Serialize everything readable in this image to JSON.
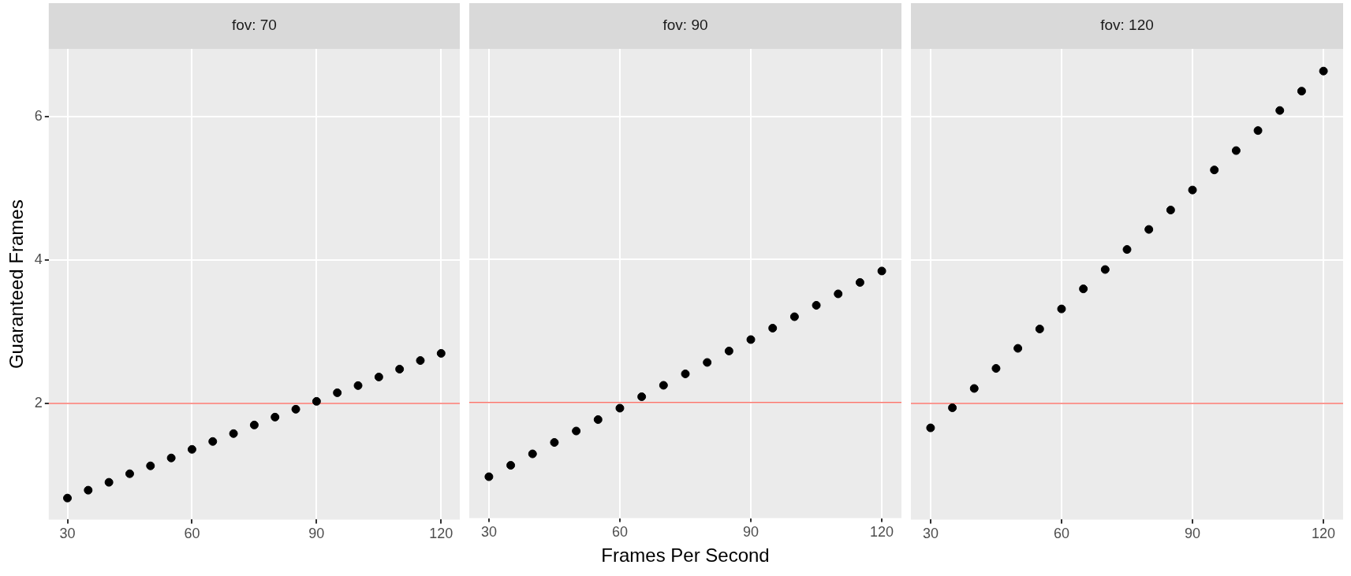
{
  "chart_data": [
    {
      "type": "scatter",
      "title": "fov: 70",
      "ylabel": "Guaranteed Frames",
      "x": [
        30,
        35,
        40,
        45,
        50,
        55,
        60,
        65,
        70,
        75,
        80,
        85,
        90,
        95,
        100,
        105,
        110,
        115,
        120
      ],
      "series": [
        {
          "color": "#000000",
          "values": [
            0.68,
            0.79,
            0.9,
            1.02,
            1.13,
            1.24,
            1.36,
            1.47,
            1.58,
            1.7,
            1.81,
            1.92,
            2.03,
            2.15,
            2.25,
            2.37,
            2.48,
            2.6,
            2.7
          ]
        }
      ],
      "xlim": [
        25.5,
        124.5
      ],
      "xticks": [
        30,
        60,
        90,
        120
      ],
      "ylim": [
        0.38,
        6.95
      ],
      "yticks": [
        2,
        4,
        6
      ],
      "ref_lines": [
        {
          "axis": "y",
          "value": 2,
          "color": "#f8766d"
        }
      ],
      "grid": true,
      "legend": false,
      "marker": "circle"
    },
    {
      "type": "scatter",
      "title": "fov: 90",
      "xlabel": "Frames Per Second",
      "x": [
        30,
        35,
        40,
        45,
        50,
        55,
        60,
        65,
        70,
        75,
        80,
        85,
        90,
        95,
        100,
        105,
        110,
        115,
        120
      ],
      "series": [
        {
          "color": "#000000",
          "values": [
            0.96,
            1.12,
            1.28,
            1.44,
            1.6,
            1.76,
            1.92,
            2.08,
            2.24,
            2.4,
            2.56,
            2.72,
            2.88,
            3.04,
            3.2,
            3.36,
            3.52,
            3.68,
            3.84
          ]
        }
      ],
      "xlim": [
        25.5,
        124.5
      ],
      "xticks": [
        30,
        60,
        90,
        120
      ],
      "ylim": [
        0.38,
        6.95
      ],
      "yticks": [
        2,
        4,
        6
      ],
      "ref_lines": [
        {
          "axis": "y",
          "value": 2,
          "color": "#f8766d"
        }
      ],
      "grid": true,
      "legend": false,
      "marker": "circle",
      "tick_labels": "x"
    },
    {
      "type": "scatter",
      "title": "fov: 120",
      "x": [
        30,
        35,
        40,
        45,
        50,
        55,
        60,
        65,
        70,
        75,
        80,
        85,
        90,
        95,
        100,
        105,
        110,
        115,
        120
      ],
      "series": [
        {
          "color": "#000000",
          "values": [
            1.66,
            1.94,
            2.21,
            2.49,
            2.77,
            3.04,
            3.32,
            3.6,
            3.87,
            4.15,
            4.43,
            4.7,
            4.98,
            5.26,
            5.53,
            5.81,
            6.09,
            6.36,
            6.64
          ]
        }
      ],
      "xlim": [
        25.5,
        124.5
      ],
      "xticks": [
        30,
        60,
        90,
        120
      ],
      "ylim": [
        0.38,
        6.95
      ],
      "yticks": [
        2,
        4,
        6
      ],
      "ref_lines": [
        {
          "axis": "y",
          "value": 2,
          "color": "#f8766d"
        }
      ],
      "grid": true,
      "legend": false,
      "marker": "circle",
      "tick_labels": "x"
    }
  ]
}
